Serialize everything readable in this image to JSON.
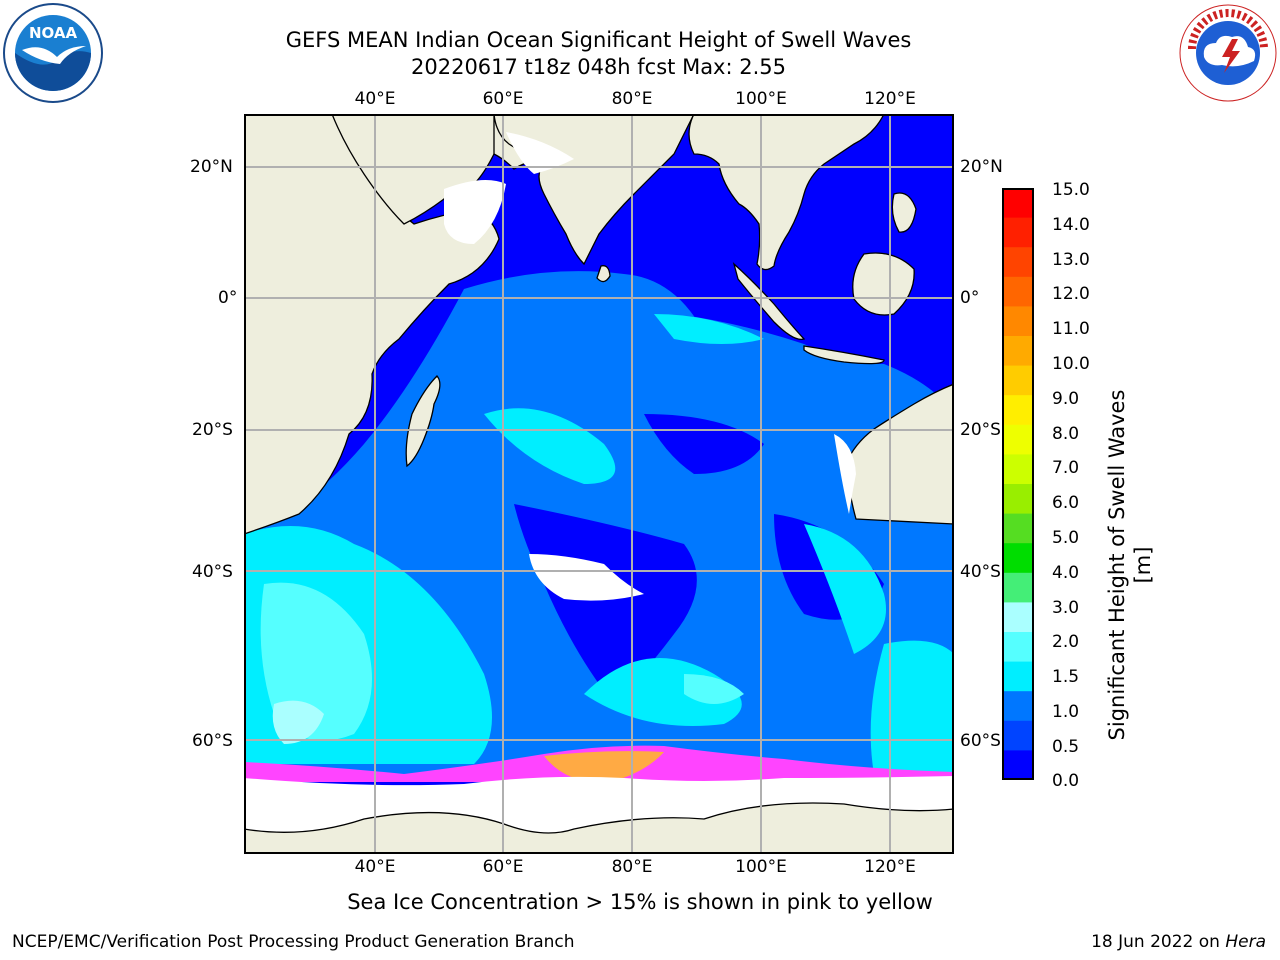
{
  "title": {
    "line1": "GEFS MEAN Indian Ocean Significant Height of Swell Waves",
    "line2": "20220617 t18z 048h fcst   Max: 2.55"
  },
  "map": {
    "longitude_ticks": [
      "40°E",
      "60°E",
      "80°E",
      "100°E",
      "120°E"
    ],
    "latitude_ticks": [
      "20°N",
      "0°",
      "20°S",
      "40°S",
      "60°S"
    ],
    "extent": {
      "lon": [
        20,
        130
      ],
      "lat": [
        -72,
        27
      ]
    },
    "colors": {
      "land": "#eeeedd",
      "ocean_low": "#0000ff",
      "coastline": "#000000",
      "grid": "#b0b0b0"
    }
  },
  "colorbar": {
    "label": "Significant Height of Swell Waves [m]",
    "ticks": [
      "15.0",
      "14.0",
      "13.0",
      "12.0",
      "11.0",
      "10.0",
      "9.0",
      "8.0",
      "7.0",
      "6.0",
      "5.0",
      "4.0",
      "3.0",
      "2.0",
      "1.5",
      "1.0",
      "0.5",
      "0.0"
    ],
    "colors_top_to_bottom": [
      "#ff0000",
      "#ff2000",
      "#ff4400",
      "#ff6600",
      "#ff8800",
      "#ffaa00",
      "#ffcc00",
      "#ffee00",
      "#eeff00",
      "#ccff00",
      "#99ee00",
      "#55dd22",
      "#00dd00",
      "#44ee77",
      "#aaffff",
      "#55ffff",
      "#00eeff",
      "#0077ff",
      "#0044ff",
      "#0000ff"
    ]
  },
  "footer": {
    "ice_note": "Sea Ice Concentration > 15% is shown in pink to yellow",
    "producer": "NCEP/EMC/Verification Post Processing Product Generation Branch",
    "date_text": "18 Jun 2022 on ",
    "host": "Hera"
  },
  "logos": {
    "left_icon": "noaa-logo",
    "right_icon": "nws-logo"
  }
}
